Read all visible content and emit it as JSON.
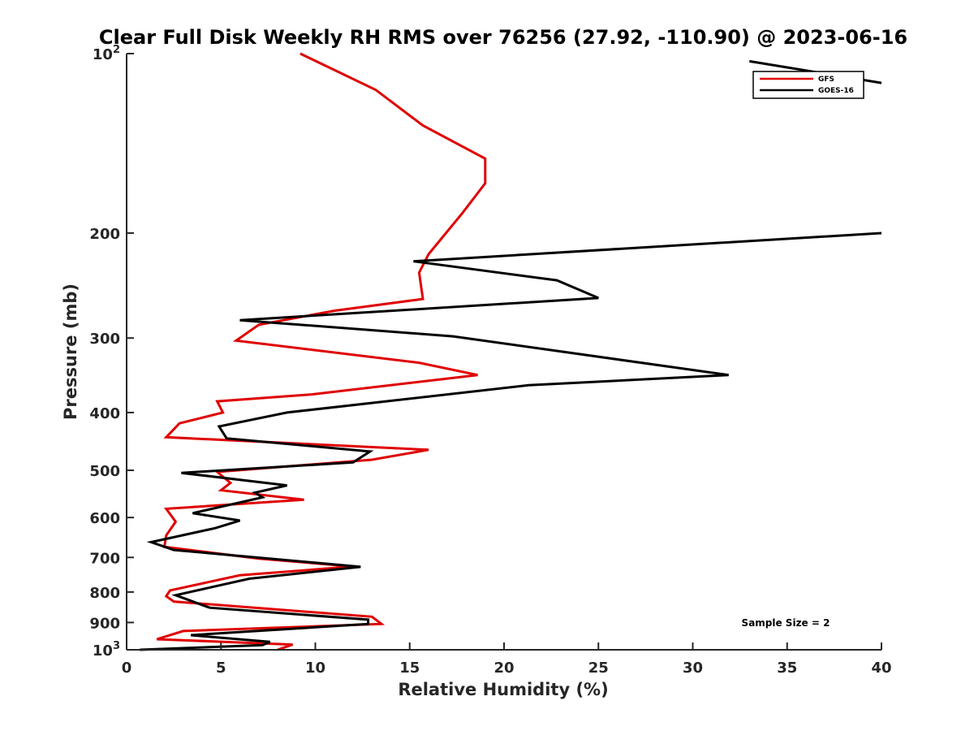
{
  "chart_data": {
    "type": "line",
    "title": "Clear Full Disk Weekly RH RMS over 76256 (27.92, -110.90) @ 2023-06-16",
    "xlabel": "Relative Humidity (%)",
    "ylabel": "Pressure (mb)",
    "xlim": [
      0,
      40
    ],
    "ylim": [
      100,
      1000
    ],
    "yscale": "log",
    "y_reversed": true,
    "x_ticks": [
      0,
      5,
      10,
      15,
      20,
      25,
      30,
      35,
      40
    ],
    "y_ticks": [
      {
        "value": 100,
        "base": "10",
        "exp": "2"
      },
      {
        "value": 200,
        "label": "200"
      },
      {
        "value": 300,
        "label": "300"
      },
      {
        "value": 400,
        "label": "400"
      },
      {
        "value": 500,
        "label": "500"
      },
      {
        "value": 600,
        "label": "600"
      },
      {
        "value": 700,
        "label": "700"
      },
      {
        "value": 800,
        "label": "800"
      },
      {
        "value": 900,
        "label": "900"
      },
      {
        "value": 1000,
        "base": "10",
        "exp": "3"
      }
    ],
    "legend_position": "top-right",
    "annotation": "Sample Size = 2",
    "series": [
      {
        "name": "GFS",
        "color": "#e00000",
        "points": [
          [
            9.2,
            100
          ],
          [
            13.2,
            115
          ],
          [
            15.7,
            132
          ],
          [
            19.0,
            150
          ],
          [
            19.0,
            165
          ],
          [
            17.8,
            185
          ],
          [
            16.0,
            217
          ],
          [
            15.5,
            233
          ],
          [
            15.7,
            258
          ],
          [
            11.0,
            270
          ],
          [
            7.0,
            285
          ],
          [
            5.8,
            303
          ],
          [
            15.5,
            330
          ],
          [
            18.6,
            346
          ],
          [
            9.8,
            373
          ],
          [
            4.8,
            383
          ],
          [
            5.1,
            400
          ],
          [
            2.8,
            417
          ],
          [
            2.1,
            440
          ],
          [
            16.0,
            462
          ],
          [
            13.0,
            480
          ],
          [
            4.8,
            503
          ],
          [
            5.5,
            525
          ],
          [
            5.0,
            540
          ],
          [
            9.4,
            560
          ],
          [
            2.1,
            580
          ],
          [
            2.6,
            610
          ],
          [
            2.1,
            643
          ],
          [
            2.0,
            672
          ],
          [
            7.0,
            703
          ],
          [
            12.0,
            725
          ],
          [
            6.0,
            750
          ],
          [
            2.3,
            795
          ],
          [
            2.1,
            813
          ],
          [
            2.5,
            830
          ],
          [
            13.0,
            880
          ],
          [
            13.5,
            905
          ],
          [
            3.0,
            930
          ],
          [
            1.6,
            960
          ],
          [
            8.8,
            980
          ],
          [
            8.0,
            1000
          ]
        ]
      },
      {
        "name": "GOES-16",
        "color": "#000000",
        "points": [
          [
            40.0,
            200
          ],
          [
            15.2,
            223
          ],
          [
            22.8,
            240
          ],
          [
            25.0,
            257
          ],
          [
            6.0,
            280
          ],
          [
            17.3,
            298
          ],
          [
            31.9,
            346
          ],
          [
            21.3,
            360
          ],
          [
            8.5,
            400
          ],
          [
            4.9,
            422
          ],
          [
            5.3,
            442
          ],
          [
            12.9,
            465
          ],
          [
            12.0,
            485
          ],
          [
            2.9,
            505
          ],
          [
            8.5,
            530
          ],
          [
            6.8,
            545
          ],
          [
            7.2,
            555
          ],
          [
            3.5,
            590
          ],
          [
            6.0,
            607
          ],
          [
            4.7,
            625
          ],
          [
            1.3,
            660
          ],
          [
            2.5,
            680
          ],
          [
            12.4,
            726
          ],
          [
            6.5,
            760
          ],
          [
            2.6,
            810
          ],
          [
            4.4,
            850
          ],
          [
            12.8,
            890
          ],
          [
            12.8,
            905
          ],
          [
            3.4,
            945
          ],
          [
            7.6,
            970
          ],
          [
            7.2,
            982
          ],
          [
            0.7,
            1000
          ]
        ]
      }
    ],
    "extra_lines": [
      {
        "name": "GOES-16",
        "color": "#000000",
        "points": [
          [
            33.0,
            103
          ],
          [
            40.0,
            112
          ]
        ]
      }
    ]
  }
}
